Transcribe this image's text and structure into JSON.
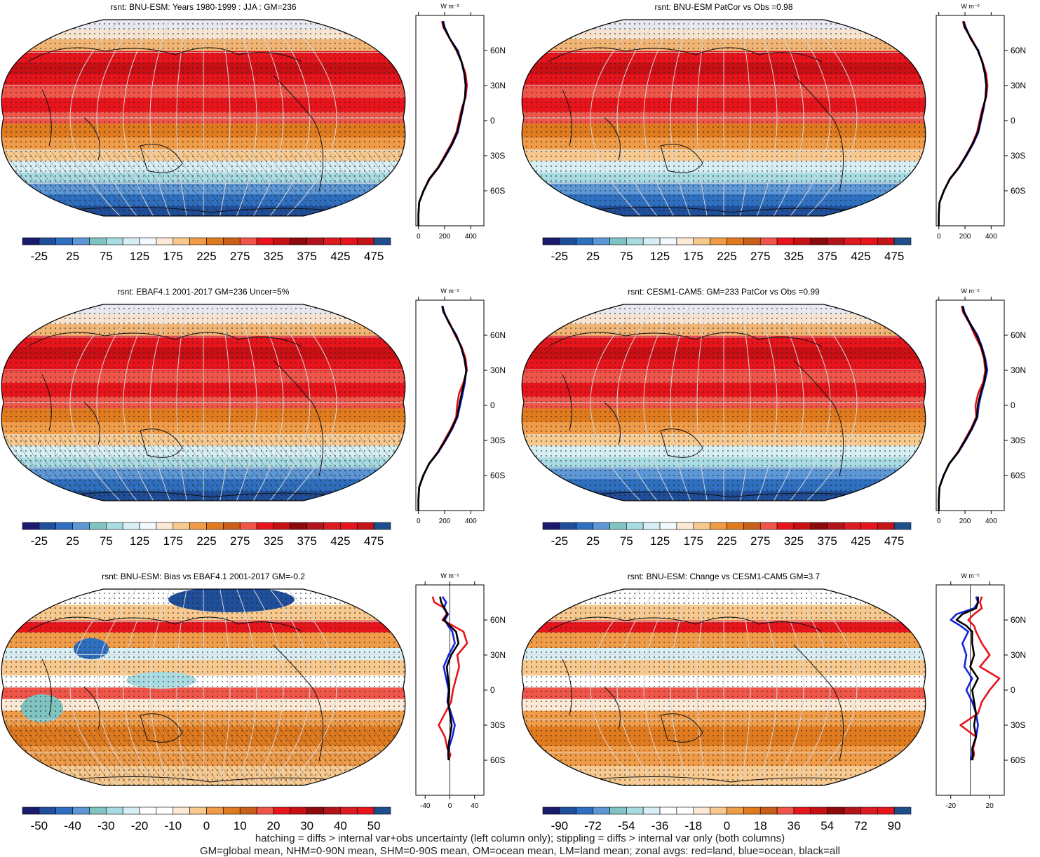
{
  "footer": {
    "line1": "hatching = diffs > internal var+obs uncertainty (left column only); stippling = diffs > internal var only (both columns)",
    "line2": "GM=global mean, NHM=0-90N mean, SHM=0-90S mean, OM=ocean mean, LM=land mean; zonal avgs: red=land, blue=ocean, black=all"
  },
  "colors": {
    "land": "#e8141c",
    "ocean": "#1424e0",
    "all": "#000000"
  },
  "chart_data": [
    {
      "type": "heatmap",
      "title": "rsnt: BNU-ESM: Years 1980-1999 : JJA : GM=236",
      "units": "W m⁻²",
      "lat_ticks": [
        "60N",
        "30N",
        "0",
        "30S",
        "60S"
      ],
      "colorbar": {
        "ticks": [
          "-25",
          "25",
          "75",
          "125",
          "175",
          "225",
          "275",
          "325",
          "375",
          "425",
          "475"
        ],
        "range": [
          -50,
          500
        ]
      },
      "profile_xticks": [
        0,
        200,
        400
      ],
      "profile_xlim": [
        -20,
        500
      ],
      "lat": [
        -90,
        -80,
        -70,
        -60,
        -50,
        -40,
        -30,
        -20,
        -10,
        0,
        10,
        20,
        30,
        40,
        50,
        60,
        70,
        80,
        85
      ],
      "series": [
        {
          "name": "land",
          "values": [
            0,
            0,
            5,
            40,
            80,
            150,
            200,
            250,
            290,
            310,
            330,
            360,
            370,
            360,
            330,
            290,
            240,
            190,
            180
          ]
        },
        {
          "name": "ocean",
          "values": [
            0,
            0,
            5,
            38,
            85,
            155,
            210,
            260,
            300,
            320,
            340,
            355,
            360,
            350,
            330,
            300,
            240,
            200,
            190
          ]
        },
        {
          "name": "all",
          "values": [
            0,
            0,
            5,
            39,
            83,
            153,
            206,
            256,
            296,
            318,
            336,
            356,
            362,
            352,
            330,
            295,
            240,
            195,
            185
          ]
        }
      ]
    },
    {
      "type": "heatmap",
      "title": "rsnt: BNU-ESM PatCor vs Obs =0.98",
      "units": "W m⁻²",
      "lat_ticks": [
        "60N",
        "30N",
        "0",
        "30S",
        "60S"
      ],
      "colorbar": {
        "ticks": [
          "-25",
          "25",
          "75",
          "125",
          "175",
          "225",
          "275",
          "325",
          "375",
          "425",
          "475"
        ],
        "range": [
          -50,
          500
        ]
      },
      "profile_xticks": [
        0,
        200,
        400
      ],
      "profile_xlim": [
        -20,
        500
      ],
      "lat": [
        -90,
        -80,
        -70,
        -60,
        -50,
        -40,
        -30,
        -20,
        -10,
        0,
        10,
        20,
        30,
        40,
        50,
        60,
        70,
        80,
        85
      ],
      "series": [
        {
          "name": "land",
          "values": [
            0,
            0,
            5,
            40,
            82,
            152,
            205,
            255,
            292,
            312,
            332,
            362,
            372,
            362,
            335,
            300,
            250,
            195,
            185
          ]
        },
        {
          "name": "ocean",
          "values": [
            0,
            0,
            5,
            38,
            85,
            156,
            212,
            262,
            302,
            322,
            342,
            357,
            362,
            352,
            332,
            302,
            245,
            205,
            190
          ]
        },
        {
          "name": "all",
          "values": [
            0,
            0,
            5,
            39,
            84,
            154,
            208,
            258,
            298,
            318,
            338,
            358,
            364,
            354,
            332,
            298,
            245,
            200,
            188
          ]
        }
      ]
    },
    {
      "type": "heatmap",
      "title": "rsnt: EBAF4.1 2001-2017 GM=236 Uncer=5%",
      "units": "W m⁻²",
      "lat_ticks": [
        "60N",
        "30N",
        "0",
        "30S",
        "60S"
      ],
      "colorbar": {
        "ticks": [
          "-25",
          "25",
          "75",
          "125",
          "175",
          "225",
          "275",
          "325",
          "375",
          "425",
          "475"
        ],
        "range": [
          -50,
          500
        ]
      },
      "profile_xticks": [
        0,
        200,
        400
      ],
      "profile_xlim": [
        -20,
        500
      ],
      "lat": [
        -90,
        -80,
        -70,
        -60,
        -50,
        -40,
        -30,
        -20,
        -10,
        0,
        10,
        20,
        30,
        40,
        50,
        60,
        70,
        80,
        85
      ],
      "series": [
        {
          "name": "land",
          "values": [
            0,
            0,
            5,
            38,
            80,
            148,
            198,
            248,
            288,
            295,
            310,
            345,
            370,
            360,
            330,
            280,
            240,
            190,
            180
          ]
        },
        {
          "name": "ocean",
          "values": [
            0,
            0,
            5,
            36,
            82,
            152,
            208,
            258,
            298,
            318,
            338,
            355,
            365,
            350,
            325,
            290,
            235,
            195,
            185
          ]
        },
        {
          "name": "all",
          "values": [
            0,
            0,
            5,
            37,
            81,
            150,
            204,
            254,
            294,
            312,
            330,
            350,
            366,
            352,
            326,
            286,
            236,
            192,
            182
          ]
        }
      ]
    },
    {
      "type": "heatmap",
      "title": "rsnt: CESM1-CAM5: GM=233 PatCor vs Obs =0.99",
      "units": "W m⁻²",
      "lat_ticks": [
        "60N",
        "30N",
        "0",
        "30S",
        "60S"
      ],
      "colorbar": {
        "ticks": [
          "-25",
          "25",
          "75",
          "125",
          "175",
          "225",
          "275",
          "325",
          "375",
          "425",
          "475"
        ],
        "range": [
          -50,
          500
        ]
      },
      "profile_xticks": [
        0,
        200,
        400
      ],
      "profile_xlim": [
        -20,
        500
      ],
      "lat": [
        -90,
        -80,
        -70,
        -60,
        -50,
        -40,
        -30,
        -20,
        -10,
        0,
        10,
        20,
        30,
        40,
        50,
        60,
        70,
        80,
        85
      ],
      "series": [
        {
          "name": "land",
          "values": [
            0,
            0,
            5,
            38,
            78,
            146,
            196,
            246,
            286,
            280,
            300,
            340,
            355,
            345,
            320,
            275,
            235,
            185,
            175
          ]
        },
        {
          "name": "ocean",
          "values": [
            0,
            0,
            5,
            36,
            80,
            150,
            205,
            255,
            295,
            305,
            325,
            350,
            370,
            355,
            330,
            295,
            240,
            195,
            185
          ]
        },
        {
          "name": "all",
          "values": [
            0,
            0,
            5,
            37,
            79,
            148,
            201,
            251,
            291,
            298,
            318,
            346,
            362,
            350,
            325,
            288,
            238,
            190,
            180
          ]
        }
      ]
    },
    {
      "type": "heatmap",
      "title": "rsnt: BNU-ESM: Bias vs EBAF4.1 2001-2017 GM=-0.2",
      "units": "W m⁻²",
      "lat_ticks": [
        "60N",
        "30N",
        "0",
        "30S",
        "60S"
      ],
      "colorbar": {
        "ticks": [
          "-50",
          "-40",
          "-30",
          "-20",
          "-10",
          "0",
          "10",
          "20",
          "30",
          "40",
          "50"
        ],
        "range": [
          -55,
          55
        ]
      },
      "profile_xticks": [
        -40,
        0,
        40
      ],
      "profile_xlim": [
        -55,
        55
      ],
      "lat": [
        -60,
        -55,
        -50,
        -40,
        -30,
        -20,
        -10,
        0,
        10,
        20,
        30,
        40,
        50,
        55,
        60,
        65,
        70,
        75,
        80
      ],
      "series": [
        {
          "name": "land",
          "values": [
            -2,
            1,
            -4,
            -8,
            -18,
            -8,
            2,
            5,
            10,
            15,
            12,
            28,
            22,
            5,
            -12,
            -5,
            -8,
            -25,
            -28
          ]
        },
        {
          "name": "ocean",
          "values": [
            -2,
            -3,
            -2,
            4,
            8,
            2,
            -4,
            -2,
            -6,
            -10,
            -2,
            8,
            4,
            -3,
            -8,
            -3,
            -10,
            -6,
            -12
          ]
        },
        {
          "name": "all",
          "values": [
            -2,
            -2,
            -3,
            0,
            3,
            0,
            -3,
            -1,
            -3,
            -5,
            2,
            14,
            10,
            0,
            -10,
            -4,
            -9,
            -14,
            -16
          ]
        }
      ]
    },
    {
      "type": "heatmap",
      "title": "rsnt: BNU-ESM: Change vs CESM1-CAM5 GM=3.7",
      "units": "W m⁻²",
      "lat_ticks": [
        "60N",
        "30N",
        "0",
        "30S",
        "60S"
      ],
      "colorbar": {
        "ticks": [
          "-90",
          "-72",
          "-54",
          "-36",
          "-18",
          "0",
          "18",
          "36",
          "54",
          "72",
          "90"
        ],
        "range": [
          -99,
          99
        ]
      },
      "profile_xticks": [
        -20,
        20
      ],
      "profile_xlim": [
        -35,
        35
      ],
      "lat": [
        -60,
        -55,
        -50,
        -40,
        -30,
        -20,
        -10,
        0,
        10,
        20,
        30,
        40,
        50,
        55,
        60,
        65,
        70,
        75,
        80
      ],
      "series": [
        {
          "name": "land",
          "values": [
            2,
            4,
            3,
            6,
            -10,
            8,
            12,
            20,
            30,
            10,
            20,
            12,
            6,
            4,
            -2,
            4,
            12,
            10,
            12
          ]
        },
        {
          "name": "ocean",
          "values": [
            1,
            2,
            2,
            6,
            8,
            6,
            2,
            -4,
            2,
            -6,
            -4,
            -8,
            -2,
            -10,
            -20,
            -14,
            4,
            8,
            6
          ]
        },
        {
          "name": "all",
          "values": [
            2,
            3,
            2,
            6,
            4,
            6,
            4,
            2,
            8,
            0,
            4,
            2,
            2,
            -4,
            -14,
            -8,
            6,
            8,
            8
          ]
        }
      ]
    }
  ]
}
